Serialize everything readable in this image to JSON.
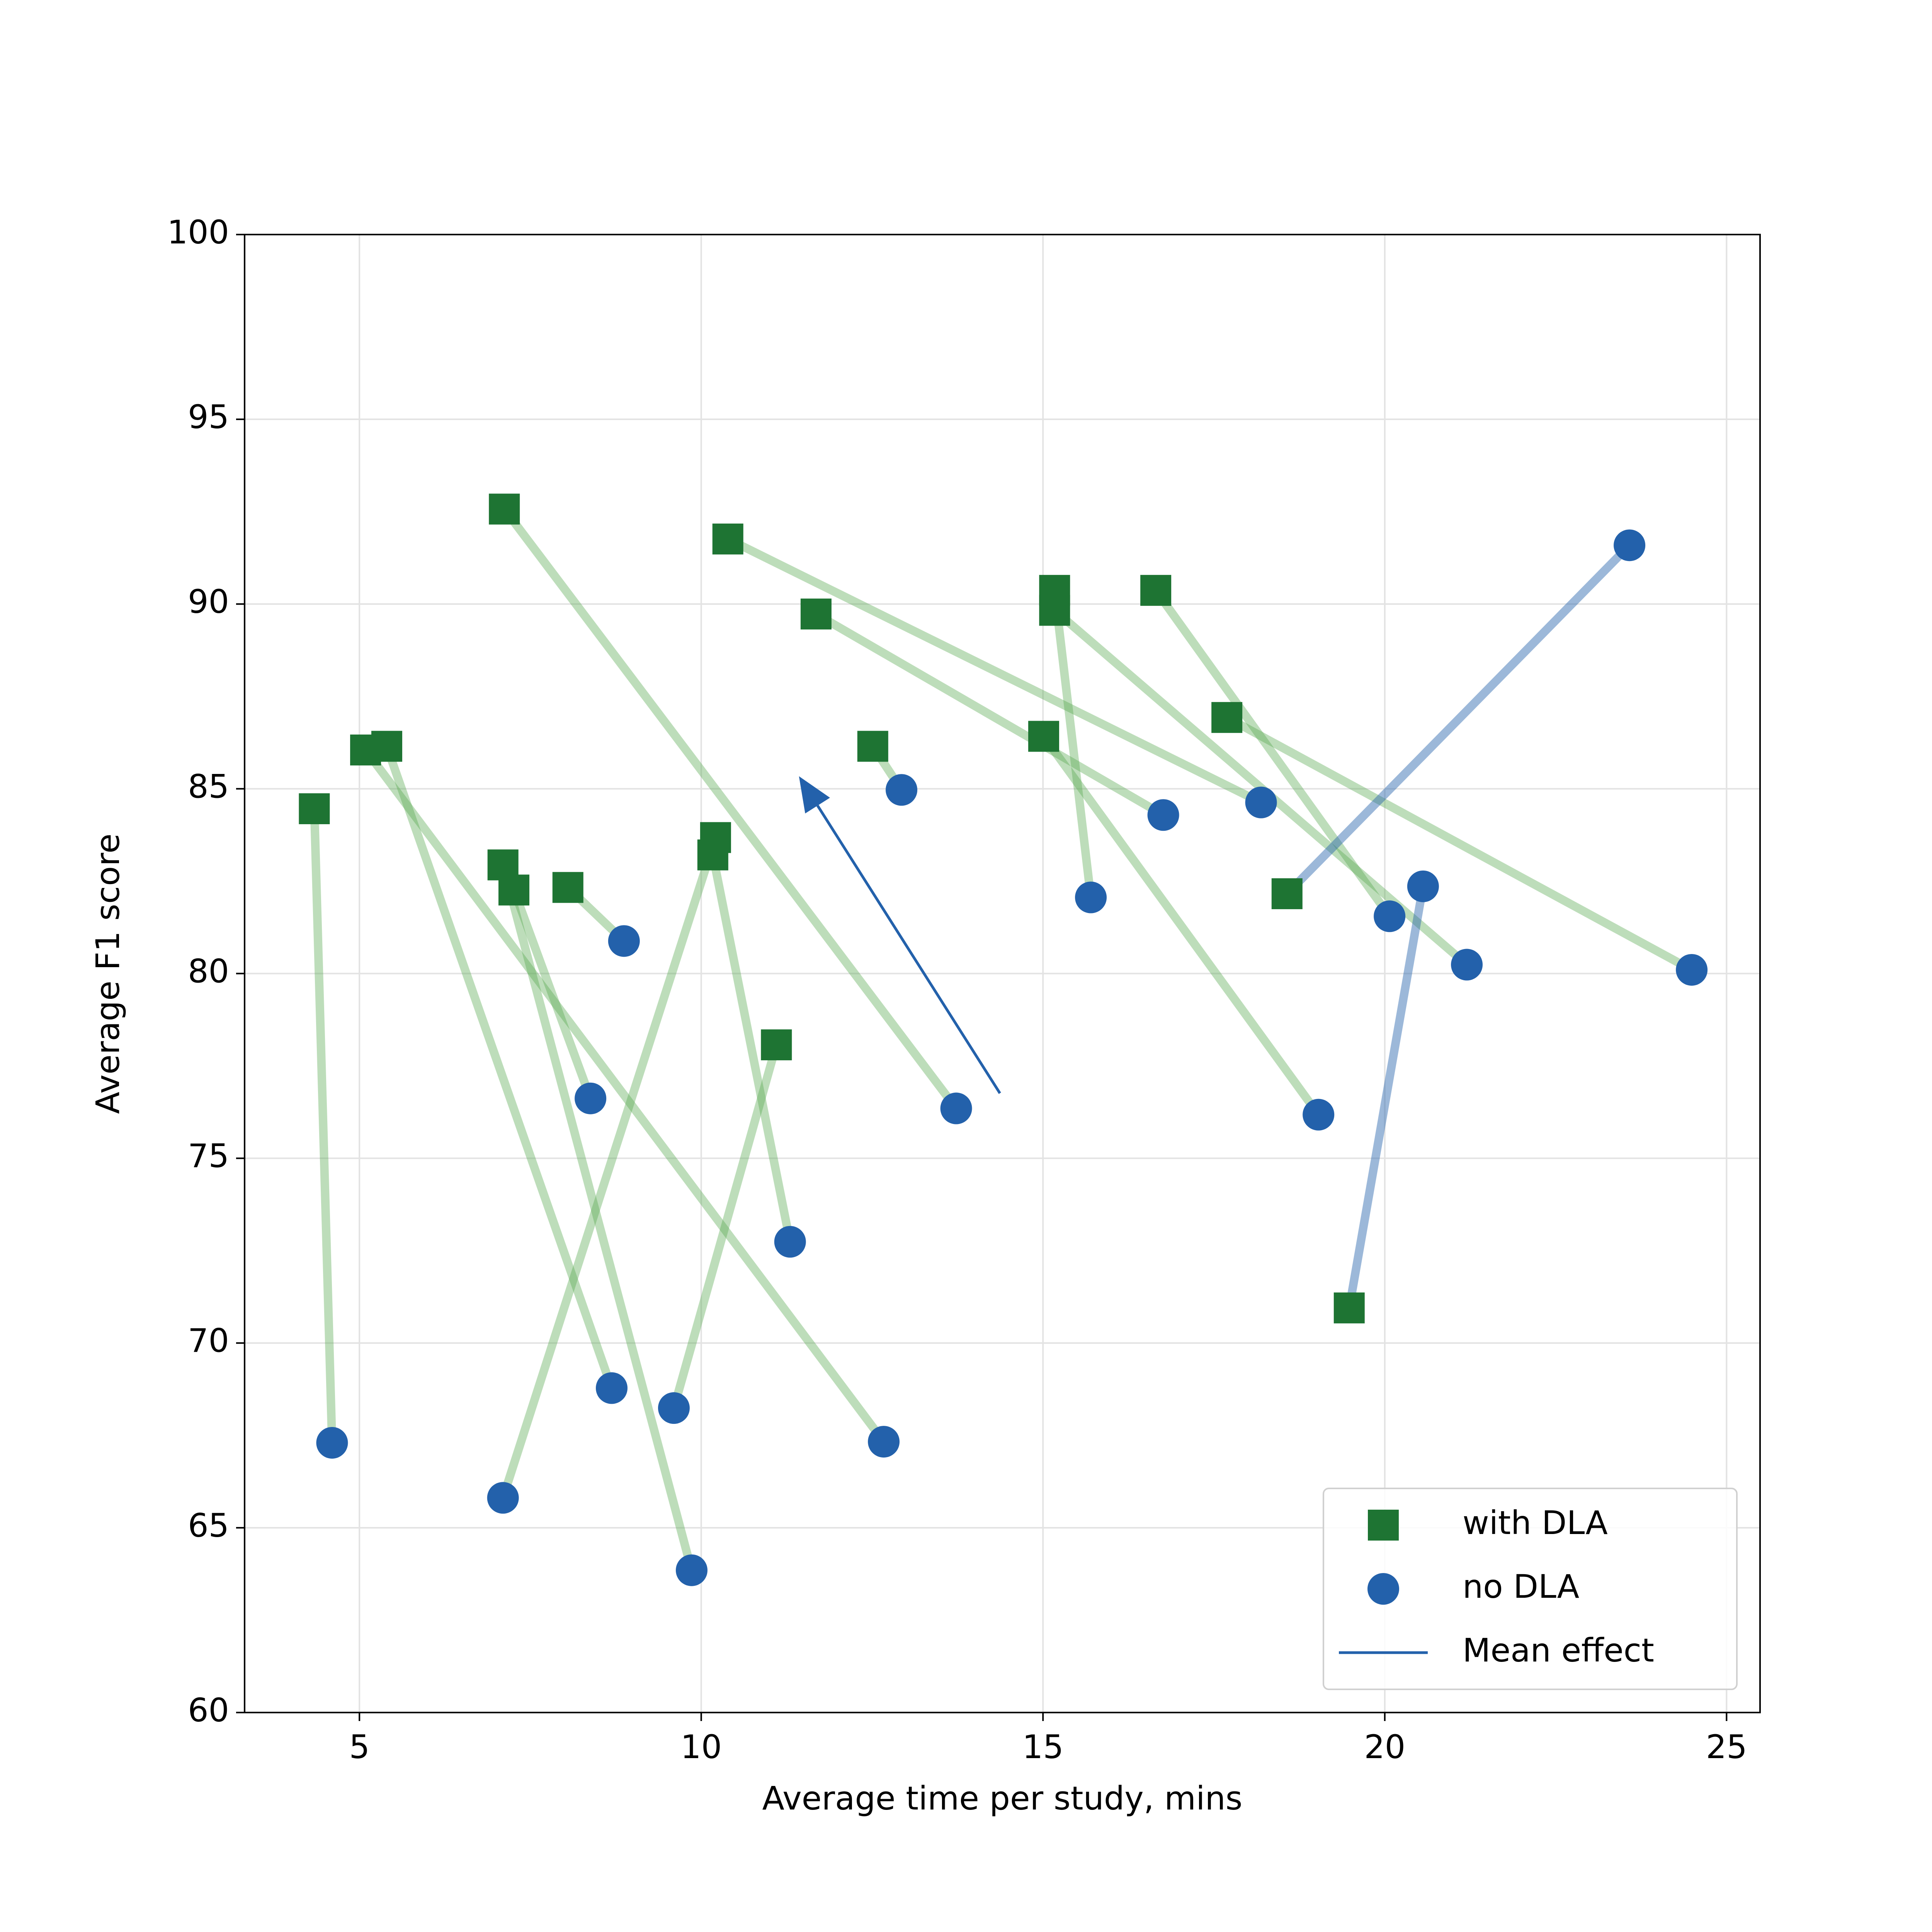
{
  "chart_data": {
    "type": "scatter",
    "x_label": "Average time per study, mins",
    "y_label": "Average F1 score",
    "xlim": [
      3.32,
      25.49
    ],
    "ylim": [
      60,
      100
    ],
    "xticks": [
      5,
      10,
      15,
      20,
      25
    ],
    "yticks": [
      60,
      65,
      70,
      75,
      80,
      85,
      90,
      95,
      100
    ],
    "grid": true,
    "legend": "lower right",
    "series": [
      {
        "name": "with DLA",
        "color": "#1e7433",
        "marker": "square",
        "x": [
          4.34,
          7.12,
          10.39,
          11.68,
          15.17,
          15.17,
          16.65,
          17.69,
          15.01,
          12.51,
          18.57,
          19.48,
          5.09,
          5.4,
          7.1,
          7.26,
          8.05,
          10.21,
          10.17,
          11.1
        ],
        "y": [
          84.46,
          92.57,
          91.76,
          89.73,
          90.37,
          89.83,
          90.37,
          86.93,
          86.42,
          86.15,
          82.16,
          70.95,
          86.05,
          86.15,
          82.94,
          82.26,
          82.33,
          83.68,
          83.21,
          78.07
        ]
      },
      {
        "name": "no DLA",
        "color": "#2361ab",
        "marker": "circle",
        "x": [
          4.6,
          13.73,
          18.19,
          16.76,
          15.7,
          21.2,
          20.07,
          24.49,
          19.03,
          12.93,
          23.58,
          20.56,
          12.67,
          8.69,
          9.86,
          8.38,
          8.87,
          7.1,
          11.3,
          9.6
        ],
        "y": [
          67.3,
          76.35,
          84.63,
          84.29,
          82.06,
          80.24,
          81.55,
          80.1,
          76.18,
          84.97,
          91.59,
          82.36,
          67.33,
          68.78,
          63.85,
          76.62,
          80.88,
          65.81,
          72.74,
          68.24
        ]
      }
    ],
    "mean_effect": {
      "name": "Mean effect",
      "color": "#2361ab",
      "x": [
        14.37,
        11.43
      ],
      "y": [
        76.76,
        85.34
      ]
    }
  }
}
